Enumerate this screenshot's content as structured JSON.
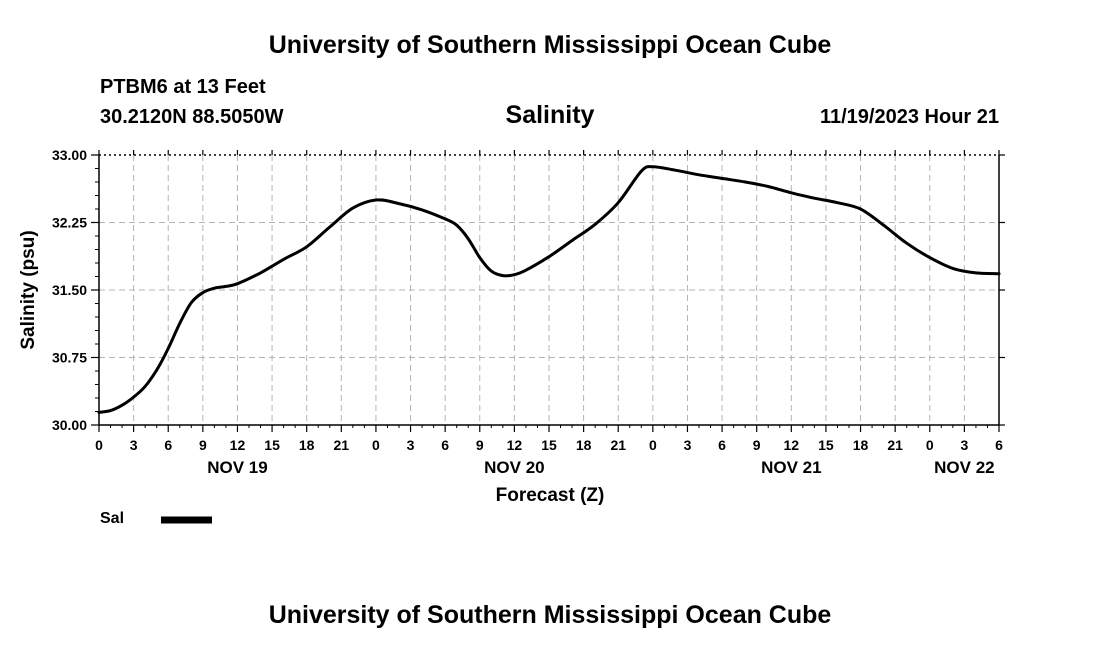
{
  "header": {
    "title": "University of Southern Mississippi Ocean Cube",
    "station": "PTBM6 at 13 Feet",
    "coords": "30.2120N  88.5050W",
    "chart_title": "Salinity",
    "timestamp": "11/19/2023 Hour 21"
  },
  "footer": {
    "title": "University of Southern Mississippi Ocean Cube"
  },
  "legend": {
    "label": "Sal"
  },
  "colors": {
    "line": "#000000",
    "grid": "#b4b4b4",
    "axis": "#000000"
  },
  "chart_data": {
    "type": "line",
    "title": "Salinity",
    "xlabel": "Forecast (Z)",
    "ylabel": "Salinity (psu)",
    "x_unit": "hours from NOV 19 00Z",
    "xlim": [
      0,
      78
    ],
    "ylim": [
      30.0,
      33.0
    ],
    "y_ticks": [
      30.0,
      30.75,
      31.5,
      32.25,
      33.0
    ],
    "y_tick_labels": [
      "30.00",
      "30.75",
      "31.50",
      "32.25",
      "33.00"
    ],
    "x_ticks": [
      0,
      3,
      6,
      9,
      12,
      15,
      18,
      21,
      24,
      27,
      30,
      33,
      36,
      39,
      42,
      45,
      48,
      51,
      54,
      57,
      60,
      63,
      66,
      69,
      72,
      75,
      78
    ],
    "x_tick_labels": [
      "0",
      "3",
      "6",
      "9",
      "12",
      "15",
      "18",
      "21",
      "0",
      "3",
      "6",
      "9",
      "12",
      "15",
      "18",
      "21",
      "0",
      "3",
      "6",
      "9",
      "12",
      "15",
      "18",
      "21",
      "0",
      "3",
      "6"
    ],
    "date_labels": [
      {
        "x": 12,
        "label": "NOV 19"
      },
      {
        "x": 36,
        "label": "NOV 20"
      },
      {
        "x": 60,
        "label": "NOV 21"
      },
      {
        "x": 75,
        "label": "NOV 22"
      }
    ],
    "grid": true,
    "series": [
      {
        "name": "Sal",
        "x": [
          0,
          1,
          2,
          3,
          4,
          5,
          6,
          7,
          8,
          9,
          10,
          11,
          12,
          14,
          16,
          18,
          20,
          22,
          24,
          26,
          28,
          30,
          31,
          32,
          33,
          34,
          35,
          36,
          37,
          39,
          41,
          43,
          45,
          47,
          48,
          50,
          52,
          54,
          56,
          58,
          60,
          62,
          64,
          66,
          68,
          70,
          72,
          74,
          76,
          78
        ],
        "values": [
          30.14,
          30.16,
          30.22,
          30.31,
          30.43,
          30.61,
          30.85,
          31.13,
          31.36,
          31.47,
          31.52,
          31.54,
          31.57,
          31.69,
          31.84,
          31.98,
          32.2,
          32.41,
          32.5,
          32.46,
          32.39,
          32.29,
          32.22,
          32.07,
          31.86,
          31.71,
          31.66,
          31.67,
          31.72,
          31.87,
          32.05,
          32.23,
          32.47,
          32.82,
          32.87,
          32.83,
          32.78,
          32.74,
          32.7,
          32.65,
          32.58,
          32.52,
          32.47,
          32.4,
          32.22,
          32.02,
          31.86,
          31.74,
          31.69,
          31.68
        ]
      }
    ]
  }
}
